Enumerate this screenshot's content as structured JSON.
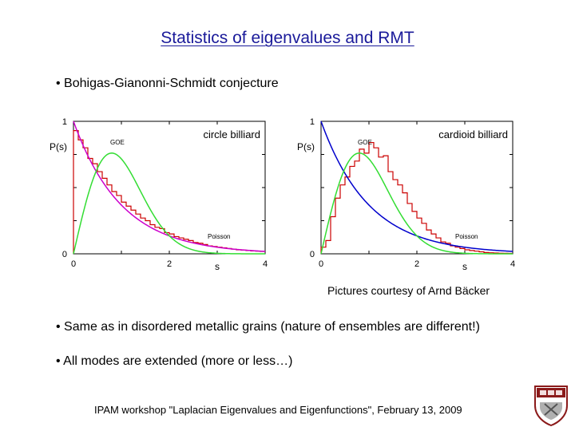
{
  "slide": {
    "title": "Statistics of eigenvalues and RMT",
    "bullets": [
      "• Bohigas-Gianonni-Schmidt conjecture",
      "• Same as in disordered metallic grains (nature of ensembles are different!)",
      "• All modes are extended (more or less…)"
    ],
    "credit": "Pictures courtesy of Arnd Bäcker",
    "footer": "IPAM workshop \"Laplacian Eigenvalues and Eigenfunctions\", February 13, 2009"
  },
  "colors": {
    "title": "#1a1a9a",
    "poisson_circle": "#cc00cc",
    "poisson_cardioid": "#0000cc",
    "goe": "#33dd33",
    "histogram": "#cc0000"
  },
  "chart_data": [
    {
      "type": "line",
      "title": "circle billiard",
      "ylabel": "P(s)",
      "xlabel": "s",
      "xlim": [
        0,
        4
      ],
      "ylim": [
        0,
        1
      ],
      "xticks": [
        "0",
        "2",
        "4"
      ],
      "yticks": [
        "0",
        "1"
      ],
      "series": [
        {
          "name": "Poisson",
          "label": "Poisson",
          "formula": "exp(-s)"
        },
        {
          "name": "GOE",
          "label": "GOE",
          "formula": "(pi/2) s exp(-pi s^2/4)"
        },
        {
          "name": "histogram",
          "label": "",
          "bin_width": 0.1,
          "values": [
            0.93,
            0.86,
            0.8,
            0.72,
            0.68,
            0.62,
            0.57,
            0.52,
            0.47,
            0.44,
            0.39,
            0.36,
            0.33,
            0.3,
            0.27,
            0.25,
            0.22,
            0.2,
            0.19,
            0.16,
            0.15,
            0.13,
            0.12,
            0.11,
            0.1,
            0.085,
            0.08,
            0.07,
            0.06,
            0.055,
            0.05,
            0.045,
            0.04,
            0.035,
            0.03,
            0.028,
            0.025,
            0.022,
            0.02,
            0.018
          ]
        }
      ]
    },
    {
      "type": "line",
      "title": "cardioid billiard",
      "ylabel": "P(s)",
      "xlabel": "s",
      "xlim": [
        0,
        4
      ],
      "ylim": [
        0,
        1
      ],
      "xticks": [
        "0",
        "2",
        "4"
      ],
      "yticks": [
        "0",
        "1"
      ],
      "series": [
        {
          "name": "Poisson",
          "label": "Poisson",
          "formula": "exp(-s)"
        },
        {
          "name": "GOE",
          "label": "GOE",
          "formula": "(pi/2) s exp(-pi s^2/4)"
        },
        {
          "name": "histogram",
          "label": "",
          "bin_width": 0.1,
          "values": [
            0.05,
            0.1,
            0.28,
            0.42,
            0.52,
            0.58,
            0.66,
            0.7,
            0.79,
            0.76,
            0.84,
            0.8,
            0.73,
            0.74,
            0.62,
            0.56,
            0.52,
            0.46,
            0.38,
            0.32,
            0.27,
            0.23,
            0.18,
            0.15,
            0.12,
            0.09,
            0.08,
            0.06,
            0.05,
            0.04,
            0.03,
            0.025,
            0.02,
            0.015,
            0.01,
            0.008,
            0.006,
            0.005,
            0.004,
            0.003
          ]
        }
      ]
    }
  ]
}
